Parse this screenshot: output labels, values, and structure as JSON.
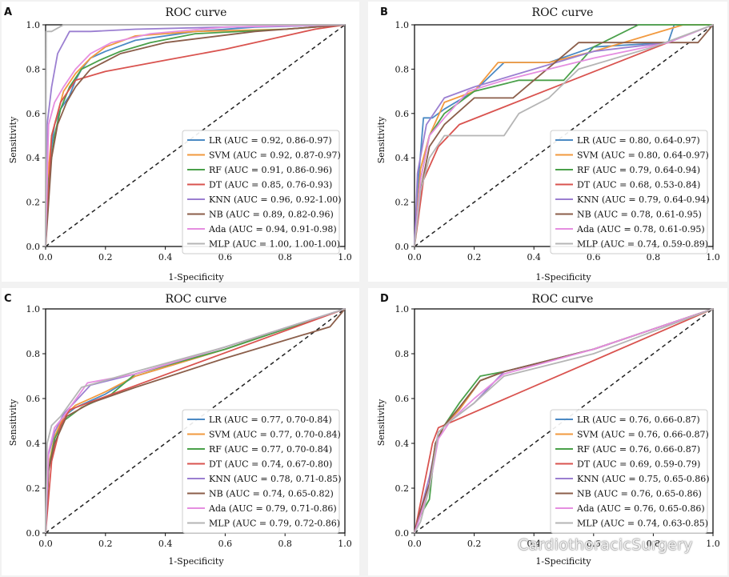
{
  "figure": {
    "watermark": "CardiothoracicSurgery",
    "panels": [
      "A",
      "B",
      "C",
      "D"
    ]
  },
  "colors": {
    "LR": "#4c8ac4",
    "SVM": "#f29a3f",
    "RF": "#4aa04a",
    "DT": "#d9534f",
    "KNN": "#9b7fd1",
    "NB": "#8b5e4a",
    "Ada": "#e58ee0",
    "MLP": "#b5b5b5",
    "diagonal": "#222222"
  },
  "chart_data": [
    {
      "panel": "A",
      "type": "line",
      "title": "ROC curve",
      "xlabel": "1-Specificity",
      "ylabel": "Sensitivity",
      "xlim": [
        0,
        1
      ],
      "ylim": [
        0,
        1
      ],
      "xticks": [
        "0.0",
        "0.2",
        "0.4",
        "0.6",
        "0.8",
        "1.0"
      ],
      "yticks": [
        "0.0",
        "0.2",
        "0.4",
        "0.6",
        "0.8",
        "1.0"
      ],
      "legend_position": "lower-right",
      "series": [
        {
          "name": "LR",
          "label": "LR (AUC = 0.92, 0.86-0.97)",
          "x": [
            0,
            0.01,
            0.02,
            0.03,
            0.05,
            0.08,
            0.1,
            0.12,
            0.15,
            0.2,
            0.3,
            0.5,
            0.7,
            1
          ],
          "y": [
            0,
            0.3,
            0.45,
            0.55,
            0.62,
            0.68,
            0.75,
            0.8,
            0.85,
            0.88,
            0.93,
            0.97,
            0.99,
            1
          ]
        },
        {
          "name": "SVM",
          "label": "SVM (AUC = 0.92, 0.87-0.97)",
          "x": [
            0,
            0.01,
            0.02,
            0.04,
            0.06,
            0.1,
            0.15,
            0.2,
            0.3,
            0.5,
            0.8,
            1
          ],
          "y": [
            0,
            0.35,
            0.5,
            0.6,
            0.7,
            0.78,
            0.85,
            0.9,
            0.95,
            0.97,
            0.98,
            1
          ]
        },
        {
          "name": "RF",
          "label": "RF (AUC = 0.91, 0.86-0.96)",
          "x": [
            0,
            0.01,
            0.03,
            0.05,
            0.08,
            0.12,
            0.18,
            0.25,
            0.35,
            0.5,
            0.8,
            1
          ],
          "y": [
            0,
            0.3,
            0.5,
            0.62,
            0.72,
            0.8,
            0.84,
            0.88,
            0.92,
            0.96,
            0.98,
            1
          ]
        },
        {
          "name": "DT",
          "label": "DT (AUC = 0.85, 0.76-0.93)",
          "x": [
            0,
            0.02,
            0.05,
            0.1,
            0.2,
            0.4,
            0.6,
            0.8,
            0.9,
            1
          ],
          "y": [
            0,
            0.5,
            0.65,
            0.75,
            0.79,
            0.84,
            0.89,
            0.95,
            0.98,
            1
          ]
        },
        {
          "name": "KNN",
          "label": "KNN (AUC = 0.96, 0.92-1.00)",
          "x": [
            0,
            0.005,
            0.02,
            0.04,
            0.08,
            0.15,
            0.3,
            0.6,
            1
          ],
          "y": [
            0,
            0.55,
            0.72,
            0.87,
            0.97,
            0.97,
            0.98,
            0.99,
            1
          ]
        },
        {
          "name": "NB",
          "label": "NB (AUC = 0.89, 0.82-0.96)",
          "x": [
            0,
            0.02,
            0.04,
            0.07,
            0.1,
            0.15,
            0.25,
            0.4,
            0.7,
            1
          ],
          "y": [
            0,
            0.4,
            0.55,
            0.65,
            0.72,
            0.8,
            0.87,
            0.92,
            0.97,
            1
          ]
        },
        {
          "name": "Ada",
          "label": "Ada (AUC = 0.94, 0.91-0.98)",
          "x": [
            0,
            0.01,
            0.03,
            0.06,
            0.1,
            0.15,
            0.22,
            0.35,
            0.6,
            1
          ],
          "y": [
            0,
            0.55,
            0.65,
            0.72,
            0.8,
            0.87,
            0.92,
            0.96,
            0.99,
            1
          ]
        },
        {
          "name": "MLP",
          "label": "MLP (AUC = 1.00, 1.00-1.00)",
          "x": [
            0,
            0.002,
            0.02,
            0.06,
            0.2,
            1
          ],
          "y": [
            0,
            0.97,
            0.97,
            1,
            1,
            1
          ]
        }
      ]
    },
    {
      "panel": "B",
      "type": "line",
      "title": "ROC curve",
      "xlabel": "1-Specificity",
      "ylabel": "Sensitivity",
      "xlim": [
        0,
        1
      ],
      "ylim": [
        0,
        1
      ],
      "xticks": [
        "0.0",
        "0.2",
        "0.4",
        "0.6",
        "0.8",
        "1.0"
      ],
      "yticks": [
        "0.0",
        "0.2",
        "0.4",
        "0.6",
        "0.8",
        "1.0"
      ],
      "legend_position": "lower-right",
      "series": [
        {
          "name": "LR",
          "label": "LR (AUC = 0.80, 0.64-0.97)",
          "x": [
            0,
            0.01,
            0.03,
            0.06,
            0.1,
            0.2,
            0.3,
            0.45,
            0.6,
            0.85,
            0.87,
            1
          ],
          "y": [
            0,
            0.25,
            0.58,
            0.58,
            0.62,
            0.7,
            0.83,
            0.83,
            0.9,
            0.92,
            1,
            1
          ]
        },
        {
          "name": "SVM",
          "label": "SVM (AUC = 0.80, 0.64-0.97)",
          "x": [
            0,
            0.02,
            0.05,
            0.1,
            0.2,
            0.28,
            0.45,
            0.6,
            0.7,
            0.9,
            1
          ],
          "y": [
            0,
            0.35,
            0.5,
            0.65,
            0.7,
            0.83,
            0.83,
            0.88,
            0.92,
            1,
            1
          ]
        },
        {
          "name": "RF",
          "label": "RF (AUC = 0.79, 0.64-0.94)",
          "x": [
            0,
            0.02,
            0.05,
            0.1,
            0.2,
            0.35,
            0.5,
            0.6,
            0.75,
            0.85,
            1
          ],
          "y": [
            0,
            0.3,
            0.5,
            0.6,
            0.7,
            0.75,
            0.75,
            0.9,
            1,
            1,
            1
          ]
        },
        {
          "name": "DT",
          "label": "DT (AUC = 0.68, 0.53-0.84)",
          "x": [
            0,
            0.03,
            0.08,
            0.15,
            1
          ],
          "y": [
            0,
            0.3,
            0.45,
            0.55,
            1
          ]
        },
        {
          "name": "KNN",
          "label": "KNN (AUC = 0.79, 0.64-0.94)",
          "x": [
            0,
            0.01,
            0.04,
            0.1,
            0.2,
            0.4,
            0.6,
            0.85,
            1
          ],
          "y": [
            0,
            0.33,
            0.55,
            0.67,
            0.72,
            0.8,
            0.88,
            0.92,
            1
          ]
        },
        {
          "name": "NB",
          "label": "NB (AUC = 0.78, 0.61-0.95)",
          "x": [
            0,
            0.02,
            0.05,
            0.1,
            0.2,
            0.33,
            0.4,
            0.55,
            0.7,
            0.95,
            1
          ],
          "y": [
            0,
            0.25,
            0.45,
            0.55,
            0.67,
            0.67,
            0.75,
            0.92,
            0.92,
            0.92,
            1
          ]
        },
        {
          "name": "Ada",
          "label": "Ada (AUC = 0.78, 0.61-0.95)",
          "x": [
            0,
            0.02,
            0.05,
            0.1,
            0.18,
            0.3,
            0.45,
            0.6,
            0.85,
            1
          ],
          "y": [
            0,
            0.3,
            0.5,
            0.58,
            0.7,
            0.75,
            0.8,
            0.85,
            0.92,
            1
          ]
        },
        {
          "name": "MLP",
          "label": "MLP (AUC = 0.74, 0.59-0.89)",
          "x": [
            0,
            0.02,
            0.05,
            0.1,
            0.3,
            0.35,
            0.45,
            0.55,
            0.8,
            1
          ],
          "y": [
            0,
            0.25,
            0.4,
            0.5,
            0.5,
            0.6,
            0.67,
            0.8,
            0.9,
            1
          ]
        }
      ]
    },
    {
      "panel": "C",
      "type": "line",
      "title": "ROC curve",
      "xlabel": "1-Specificity",
      "ylabel": "Sensitivity",
      "xlim": [
        0,
        1
      ],
      "ylim": [
        0,
        1
      ],
      "xticks": [
        "0.0",
        "0.2",
        "0.4",
        "0.6",
        "0.8",
        "1.0"
      ],
      "yticks": [
        "0.0",
        "0.2",
        "0.4",
        "0.6",
        "0.8",
        "1.0"
      ],
      "legend_position": "lower-right",
      "series": [
        {
          "name": "LR",
          "label": "LR (AUC = 0.77, 0.70-0.84)",
          "x": [
            0,
            0.01,
            0.03,
            0.06,
            0.1,
            0.2,
            0.3,
            0.6,
            1
          ],
          "y": [
            0,
            0.28,
            0.42,
            0.52,
            0.56,
            0.62,
            0.7,
            0.82,
            1
          ]
        },
        {
          "name": "SVM",
          "label": "SVM (AUC = 0.77, 0.70-0.84)",
          "x": [
            0,
            0.01,
            0.03,
            0.06,
            0.1,
            0.2,
            0.3,
            0.6,
            1
          ],
          "y": [
            0,
            0.3,
            0.43,
            0.52,
            0.57,
            0.63,
            0.7,
            0.82,
            1
          ]
        },
        {
          "name": "RF",
          "label": "RF (AUC = 0.77, 0.70-0.84)",
          "x": [
            0,
            0.01,
            0.03,
            0.06,
            0.12,
            0.22,
            0.3,
            0.6,
            1
          ],
          "y": [
            0,
            0.28,
            0.42,
            0.5,
            0.56,
            0.62,
            0.71,
            0.82,
            1
          ]
        },
        {
          "name": "DT",
          "label": "DT (AUC = 0.74, 0.67-0.80)",
          "x": [
            0,
            0.02,
            0.05,
            0.08,
            1
          ],
          "y": [
            0,
            0.32,
            0.48,
            0.55,
            1
          ]
        },
        {
          "name": "KNN",
          "label": "KNN (AUC = 0.78, 0.71-0.85)",
          "x": [
            0,
            0.01,
            0.03,
            0.06,
            0.15,
            0.3,
            0.6,
            1
          ],
          "y": [
            0,
            0.35,
            0.45,
            0.53,
            0.66,
            0.71,
            0.83,
            1
          ]
        },
        {
          "name": "NB",
          "label": "NB (AUC = 0.74, 0.65-0.82)",
          "x": [
            0,
            0.01,
            0.03,
            0.07,
            0.15,
            0.3,
            0.6,
            0.95,
            1
          ],
          "y": [
            0,
            0.28,
            0.4,
            0.52,
            0.58,
            0.65,
            0.78,
            0.92,
            1
          ]
        },
        {
          "name": "Ada",
          "label": "Ada (AUC = 0.79, 0.71-0.86)",
          "x": [
            0,
            0.01,
            0.03,
            0.06,
            0.14,
            0.3,
            0.6,
            1
          ],
          "y": [
            0,
            0.36,
            0.47,
            0.52,
            0.67,
            0.71,
            0.83,
            1
          ]
        },
        {
          "name": "MLP",
          "label": "MLP (AUC = 0.79, 0.72-0.86)",
          "x": [
            0,
            0.005,
            0.02,
            0.05,
            0.12,
            0.3,
            0.6,
            1
          ],
          "y": [
            0,
            0.4,
            0.48,
            0.52,
            0.65,
            0.72,
            0.83,
            1
          ]
        }
      ]
    },
    {
      "panel": "D",
      "type": "line",
      "title": "ROC curve",
      "xlabel": "1-Specificity",
      "ylabel": "Sensitivity",
      "xlim": [
        0,
        1
      ],
      "ylim": [
        0,
        1
      ],
      "xticks": [
        "0.0",
        "0.2",
        "0.4",
        "0.6",
        "0.8",
        "1.0"
      ],
      "yticks": [
        "0.0",
        "0.2",
        "0.4",
        "0.6",
        "0.8",
        "1.0"
      ],
      "legend_position": "lower-right",
      "series": [
        {
          "name": "LR",
          "label": "LR (AUC = 0.76, 0.66-0.87)",
          "x": [
            0,
            0.02,
            0.05,
            0.07,
            0.1,
            0.15,
            0.22,
            0.3,
            0.6,
            1
          ],
          "y": [
            0,
            0.1,
            0.2,
            0.4,
            0.48,
            0.55,
            0.68,
            0.72,
            0.82,
            1
          ]
        },
        {
          "name": "SVM",
          "label": "SVM (AUC = 0.76, 0.66-0.87)",
          "x": [
            0,
            0.02,
            0.05,
            0.07,
            0.1,
            0.15,
            0.22,
            0.3,
            0.6,
            1
          ],
          "y": [
            0,
            0.1,
            0.2,
            0.4,
            0.48,
            0.55,
            0.68,
            0.72,
            0.82,
            1
          ]
        },
        {
          "name": "RF",
          "label": "RF (AUC = 0.76, 0.66-0.87)",
          "x": [
            0,
            0.02,
            0.05,
            0.07,
            0.1,
            0.15,
            0.22,
            0.3,
            0.6,
            1
          ],
          "y": [
            0,
            0.08,
            0.15,
            0.4,
            0.48,
            0.58,
            0.7,
            0.72,
            0.82,
            1
          ]
        },
        {
          "name": "DT",
          "label": "DT (AUC = 0.69, 0.59-0.79)",
          "x": [
            0,
            0.03,
            0.06,
            0.08,
            1
          ],
          "y": [
            0,
            0.2,
            0.4,
            0.47,
            1
          ]
        },
        {
          "name": "KNN",
          "label": "KNN (AUC = 0.75, 0.65-0.86)",
          "x": [
            0,
            0.02,
            0.05,
            0.08,
            0.12,
            0.2,
            0.3,
            0.6,
            1
          ],
          "y": [
            0,
            0.1,
            0.25,
            0.45,
            0.5,
            0.58,
            0.72,
            0.82,
            1
          ]
        },
        {
          "name": "NB",
          "label": "NB (AUC = 0.76, 0.65-0.86)",
          "x": [
            0,
            0.02,
            0.05,
            0.07,
            0.1,
            0.15,
            0.22,
            0.3,
            0.6,
            1
          ],
          "y": [
            0,
            0.1,
            0.22,
            0.4,
            0.48,
            0.56,
            0.68,
            0.72,
            0.82,
            1
          ]
        },
        {
          "name": "Ada",
          "label": "Ada (AUC = 0.76, 0.65-0.86)",
          "x": [
            0,
            0.02,
            0.05,
            0.08,
            0.12,
            0.2,
            0.3,
            0.6,
            1
          ],
          "y": [
            0,
            0.08,
            0.2,
            0.42,
            0.5,
            0.6,
            0.71,
            0.82,
            1
          ]
        },
        {
          "name": "MLP",
          "label": "MLP (AUC = 0.74, 0.63-0.85)",
          "x": [
            0,
            0.02,
            0.05,
            0.08,
            0.12,
            0.2,
            0.3,
            0.6,
            1
          ],
          "y": [
            0,
            0.05,
            0.2,
            0.45,
            0.5,
            0.58,
            0.7,
            0.8,
            1
          ]
        }
      ]
    }
  ]
}
